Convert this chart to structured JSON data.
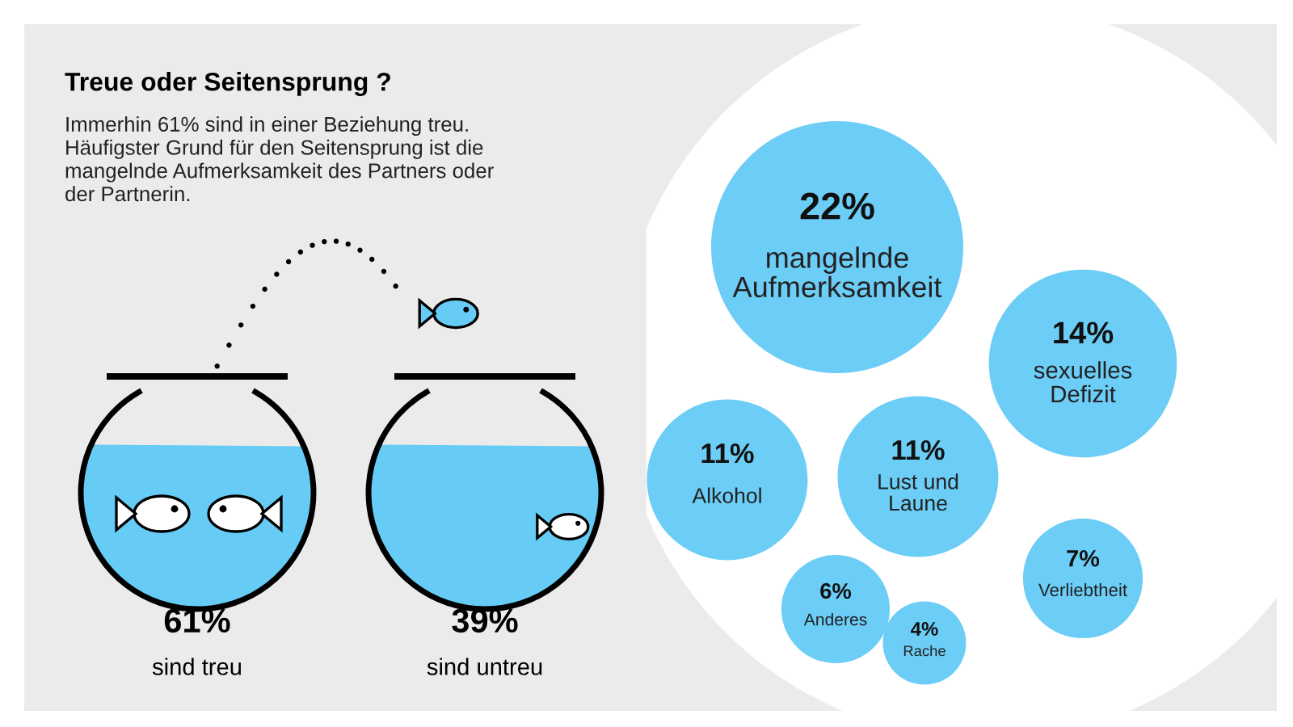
{
  "chart_data": [
    {
      "type": "other",
      "title": "Treue oder Seitensprung ?",
      "subtitle": "Immerhin 61% sind in einer Beziehung treu.\nHäufigster Grund für den Seitensprung ist die\nmangelnde Aufmerksamkeit des Partners oder\nder Partnerin.",
      "categories": [
        "sind treu",
        "sind untreu"
      ],
      "values": [
        61,
        39
      ],
      "value_labels": [
        "61%",
        "39%"
      ],
      "color": "#66ccf5"
    },
    {
      "type": "other",
      "categories": [
        "mangelnde\nAufmerksamkeit",
        "sexuelles\nDefizit",
        "Alkohol",
        "Lust und\nLaune",
        "Verliebtheit",
        "Anderes",
        "Rache"
      ],
      "values": [
        22,
        14,
        11,
        11,
        7,
        6,
        4
      ],
      "value_labels": [
        "22%",
        "14%",
        "11%",
        "11%",
        "7%",
        "6%",
        "4%"
      ],
      "color": "#6ccdf6"
    }
  ]
}
